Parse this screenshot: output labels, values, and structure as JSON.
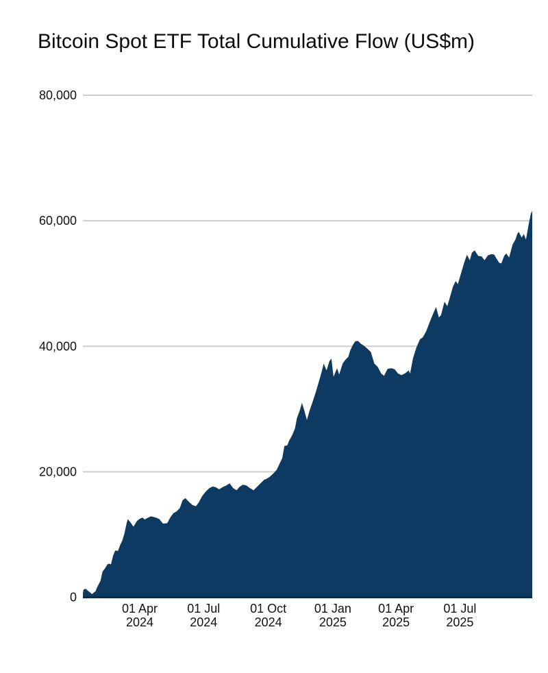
{
  "chart_data": {
    "type": "area",
    "title": "Bitcoin Spot ETF Total Cumulative Flow (US$m)",
    "xlabel": "",
    "ylabel": "",
    "unit": "US$m",
    "ylim": [
      0,
      80000
    ],
    "grid": "horizontal",
    "legend": "none",
    "x_domain": [
      "2024-01-11",
      "2025-10-12"
    ],
    "y_ticks": [
      {
        "value": 0,
        "label": "0"
      },
      {
        "value": 20000,
        "label": "20,000"
      },
      {
        "value": 40000,
        "label": "40,000"
      },
      {
        "value": 60000,
        "label": "60,000"
      },
      {
        "value": 80000,
        "label": "80,000"
      }
    ],
    "x_ticks": [
      {
        "date": "2024-04-01",
        "line1": "01 Apr",
        "line2": "2024"
      },
      {
        "date": "2024-07-01",
        "line1": "01 Jul",
        "line2": "2024"
      },
      {
        "date": "2024-10-01",
        "line1": "01 Oct",
        "line2": "2024"
      },
      {
        "date": "2025-01-01",
        "line1": "01 Jan",
        "line2": "2025"
      },
      {
        "date": "2025-04-01",
        "line1": "01 Apr",
        "line2": "2025"
      },
      {
        "date": "2025-07-01",
        "line1": "01 Jul",
        "line2": "2025"
      }
    ],
    "colors": {
      "area_fill": "#0d3a63",
      "gridline": "#cccccc",
      "axis_line": "#0b2c4d",
      "text": "#111111",
      "background": "#ffffff"
    },
    "series": [
      {
        "name": "Total Cumulative Flow",
        "points": [
          [
            "2024-01-11",
            650
          ],
          [
            "2024-01-12",
            1250
          ],
          [
            "2024-01-15",
            1350
          ],
          [
            "2024-01-18",
            1050
          ],
          [
            "2024-01-22",
            700
          ],
          [
            "2024-01-24",
            500
          ],
          [
            "2024-01-26",
            700
          ],
          [
            "2024-01-29",
            950
          ],
          [
            "2024-02-01",
            1750
          ],
          [
            "2024-02-05",
            2600
          ],
          [
            "2024-02-08",
            4100
          ],
          [
            "2024-02-12",
            4700
          ],
          [
            "2024-02-15",
            5250
          ],
          [
            "2024-02-17",
            5350
          ],
          [
            "2024-02-20",
            5250
          ],
          [
            "2024-02-23",
            6650
          ],
          [
            "2024-02-26",
            7450
          ],
          [
            "2024-03-01",
            7400
          ],
          [
            "2024-03-04",
            8300
          ],
          [
            "2024-03-07",
            9000
          ],
          [
            "2024-03-10",
            10100
          ],
          [
            "2024-03-13",
            11700
          ],
          [
            "2024-03-15",
            12450
          ],
          [
            "2024-03-19",
            11900
          ],
          [
            "2024-03-23",
            11250
          ],
          [
            "2024-03-28",
            12150
          ],
          [
            "2024-04-01",
            12500
          ],
          [
            "2024-04-05",
            12700
          ],
          [
            "2024-04-08",
            12400
          ],
          [
            "2024-04-12",
            12650
          ],
          [
            "2024-04-17",
            12900
          ],
          [
            "2024-04-24",
            12700
          ],
          [
            "2024-04-29",
            12450
          ],
          [
            "2024-05-04",
            11750
          ],
          [
            "2024-05-10",
            11800
          ],
          [
            "2024-05-15",
            12800
          ],
          [
            "2024-05-19",
            13400
          ],
          [
            "2024-05-23",
            13650
          ],
          [
            "2024-05-28",
            14200
          ],
          [
            "2024-06-01",
            15450
          ],
          [
            "2024-06-05",
            15800
          ],
          [
            "2024-06-10",
            15200
          ],
          [
            "2024-06-15",
            14700
          ],
          [
            "2024-06-20",
            14500
          ],
          [
            "2024-06-24",
            15100
          ],
          [
            "2024-06-29",
            16150
          ],
          [
            "2024-07-04",
            16850
          ],
          [
            "2024-07-09",
            17400
          ],
          [
            "2024-07-14",
            17650
          ],
          [
            "2024-07-18",
            17550
          ],
          [
            "2024-07-23",
            17200
          ],
          [
            "2024-07-28",
            17550
          ],
          [
            "2024-08-02",
            17800
          ],
          [
            "2024-08-07",
            18150
          ],
          [
            "2024-08-12",
            17400
          ],
          [
            "2024-08-17",
            17050
          ],
          [
            "2024-08-21",
            17600
          ],
          [
            "2024-08-26",
            17950
          ],
          [
            "2024-08-31",
            17800
          ],
          [
            "2024-09-05",
            17400
          ],
          [
            "2024-09-10",
            17050
          ],
          [
            "2024-09-15",
            17600
          ],
          [
            "2024-09-20",
            18150
          ],
          [
            "2024-09-25",
            18700
          ],
          [
            "2024-09-29",
            18900
          ],
          [
            "2024-10-03",
            19200
          ],
          [
            "2024-10-08",
            19700
          ],
          [
            "2024-10-13",
            20300
          ],
          [
            "2024-10-17",
            21250
          ],
          [
            "2024-10-21",
            22200
          ],
          [
            "2024-10-24",
            24100
          ],
          [
            "2024-10-28",
            24200
          ],
          [
            "2024-10-31",
            25000
          ],
          [
            "2024-11-04",
            25800
          ],
          [
            "2024-11-08",
            26900
          ],
          [
            "2024-11-11",
            28600
          ],
          [
            "2024-11-15",
            29800
          ],
          [
            "2024-11-18",
            31000
          ],
          [
            "2024-11-21",
            29900
          ],
          [
            "2024-11-25",
            28250
          ],
          [
            "2024-11-29",
            29800
          ],
          [
            "2024-12-03",
            31100
          ],
          [
            "2024-12-08",
            32800
          ],
          [
            "2024-12-13",
            34700
          ],
          [
            "2024-12-16",
            35900
          ],
          [
            "2024-12-19",
            37250
          ],
          [
            "2024-12-23",
            36150
          ],
          [
            "2024-12-27",
            37600
          ],
          [
            "2024-12-30",
            38050
          ],
          [
            "2025-01-02",
            35150
          ],
          [
            "2025-01-07",
            36500
          ],
          [
            "2025-01-10",
            35500
          ],
          [
            "2025-01-15",
            37250
          ],
          [
            "2025-01-19",
            37850
          ],
          [
            "2025-01-23",
            38300
          ],
          [
            "2025-01-26",
            39400
          ],
          [
            "2025-01-30",
            40300
          ],
          [
            "2025-02-02",
            40800
          ],
          [
            "2025-02-06",
            40850
          ],
          [
            "2025-02-10",
            40400
          ],
          [
            "2025-02-14",
            40100
          ],
          [
            "2025-02-19",
            39650
          ],
          [
            "2025-02-24",
            39100
          ],
          [
            "2025-03-01",
            37250
          ],
          [
            "2025-03-06",
            36700
          ],
          [
            "2025-03-11",
            35650
          ],
          [
            "2025-03-15",
            35300
          ],
          [
            "2025-03-20",
            36400
          ],
          [
            "2025-03-25",
            36500
          ],
          [
            "2025-03-30",
            36350
          ],
          [
            "2025-04-04",
            35650
          ],
          [
            "2025-04-09",
            35400
          ],
          [
            "2025-04-14",
            35700
          ],
          [
            "2025-04-19",
            36150
          ],
          [
            "2025-04-21",
            35650
          ],
          [
            "2025-04-25",
            38050
          ],
          [
            "2025-04-30",
            39800
          ],
          [
            "2025-05-05",
            41100
          ],
          [
            "2025-05-09",
            41400
          ],
          [
            "2025-05-14",
            42400
          ],
          [
            "2025-05-19",
            43850
          ],
          [
            "2025-05-24",
            45250
          ],
          [
            "2025-05-28",
            46250
          ],
          [
            "2025-06-01",
            44600
          ],
          [
            "2025-06-04",
            44950
          ],
          [
            "2025-06-09",
            47100
          ],
          [
            "2025-06-13",
            46400
          ],
          [
            "2025-06-17",
            47900
          ],
          [
            "2025-06-21",
            49500
          ],
          [
            "2025-06-25",
            50400
          ],
          [
            "2025-06-28",
            49900
          ],
          [
            "2025-07-03",
            51800
          ],
          [
            "2025-07-07",
            53300
          ],
          [
            "2025-07-11",
            54600
          ],
          [
            "2025-07-15",
            53700
          ],
          [
            "2025-07-18",
            54900
          ],
          [
            "2025-07-22",
            55300
          ],
          [
            "2025-07-27",
            54400
          ],
          [
            "2025-08-01",
            54300
          ],
          [
            "2025-08-05",
            53700
          ],
          [
            "2025-08-10",
            54500
          ],
          [
            "2025-08-15",
            54700
          ],
          [
            "2025-08-19",
            54600
          ],
          [
            "2025-08-22",
            54000
          ],
          [
            "2025-08-26",
            53300
          ],
          [
            "2025-08-29",
            53200
          ],
          [
            "2025-09-02",
            54400
          ],
          [
            "2025-09-05",
            54800
          ],
          [
            "2025-09-09",
            54150
          ],
          [
            "2025-09-14",
            56200
          ],
          [
            "2025-09-18",
            57000
          ],
          [
            "2025-09-21",
            58000
          ],
          [
            "2025-09-23",
            58200
          ],
          [
            "2025-09-27",
            57300
          ],
          [
            "2025-09-30",
            57900
          ],
          [
            "2025-10-03",
            57000
          ],
          [
            "2025-10-07",
            59500
          ],
          [
            "2025-10-10",
            61100
          ],
          [
            "2025-10-12",
            61600
          ]
        ]
      }
    ]
  }
}
